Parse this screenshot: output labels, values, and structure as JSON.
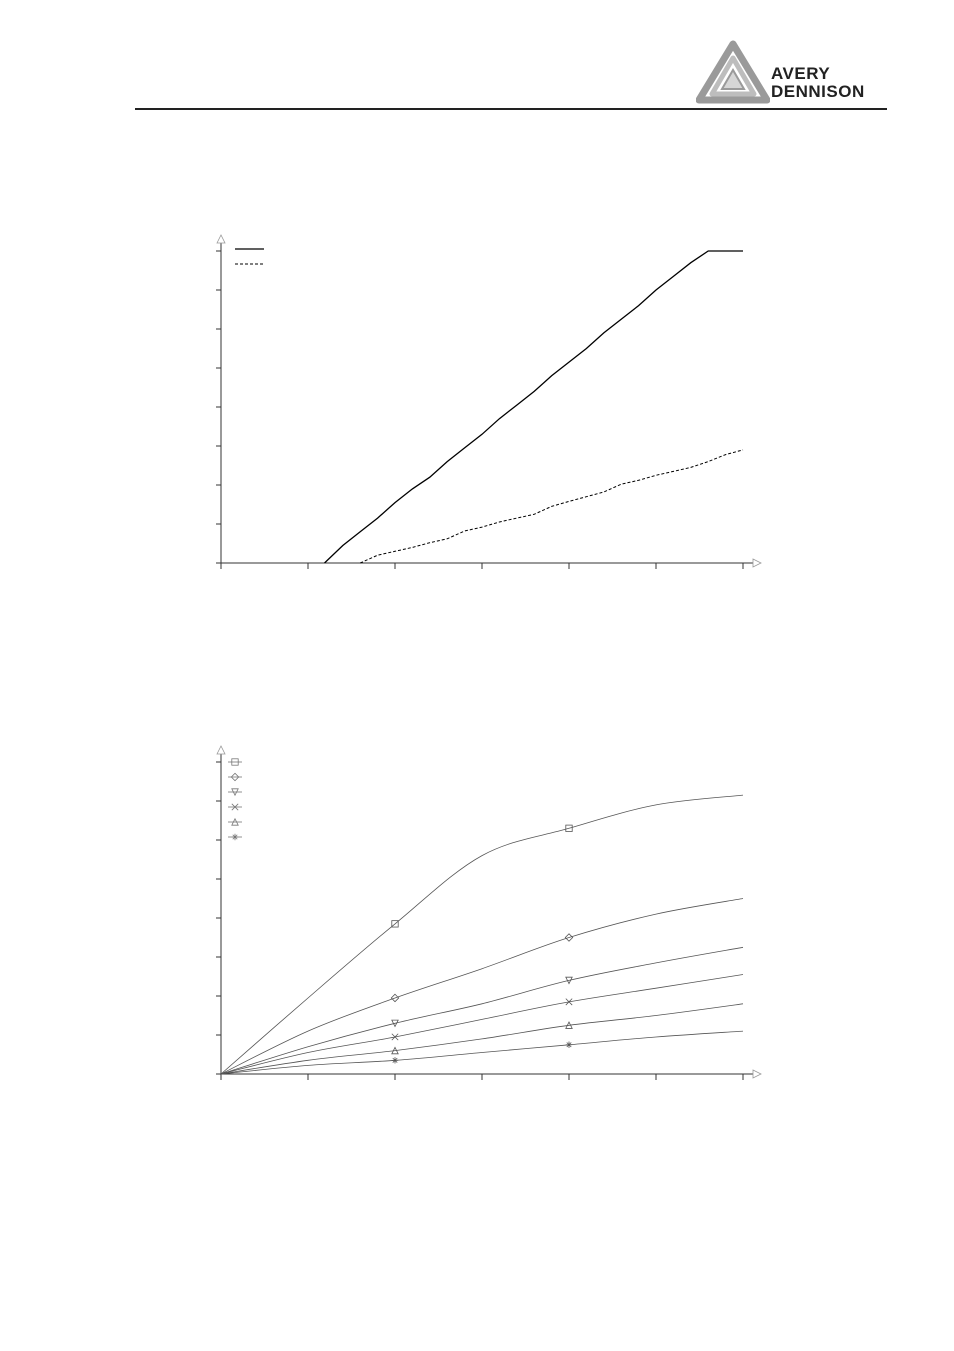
{
  "header": {
    "logo_line1": "AVERY",
    "logo_line2": "DENNISON"
  },
  "chart_data": [
    {
      "type": "line",
      "title": "",
      "xlabel": "",
      "ylabel": "",
      "xlim": [
        0,
        6
      ],
      "ylim": [
        0,
        8
      ],
      "x_ticks": [
        0,
        1,
        2,
        3,
        4,
        5,
        6
      ],
      "y_ticks": [
        0,
        1,
        2,
        3,
        4,
        5,
        6,
        7,
        8
      ],
      "grid": false,
      "legend_position": "top-left",
      "x": [
        1.19,
        1.4,
        1.6,
        1.8,
        2.0,
        2.2,
        2.4,
        2.6,
        2.8,
        3.0,
        3.2,
        3.4,
        3.6,
        3.8,
        4.0,
        4.2,
        4.4,
        4.6,
        4.8,
        5.0,
        5.2,
        5.4,
        5.6,
        5.8,
        6.0
      ],
      "series": [
        {
          "style": "solid",
          "color": "#000000",
          "values": [
            0,
            0.45,
            0.8,
            1.15,
            1.55,
            1.9,
            2.2,
            2.6,
            2.95,
            3.3,
            3.7,
            4.05,
            4.4,
            4.8,
            5.15,
            5.5,
            5.9,
            6.25,
            6.6,
            7.0,
            7.35,
            7.7,
            8.1,
            8.45,
            8.8
          ]
        },
        {
          "style": "dashed",
          "color": "#000000",
          "values": [
            null,
            null,
            0.0,
            0.2,
            0.3,
            0.4,
            0.52,
            0.62,
            0.82,
            0.92,
            1.05,
            1.15,
            1.25,
            1.45,
            1.58,
            1.7,
            1.82,
            2.02,
            2.12,
            2.25,
            2.35,
            2.45,
            2.6,
            2.78,
            2.9
          ]
        }
      ]
    },
    {
      "type": "line",
      "title": "",
      "xlabel": "",
      "ylabel": "",
      "xlim": [
        0,
        6
      ],
      "ylim": [
        0,
        8
      ],
      "x_ticks": [
        0,
        1,
        2,
        3,
        4,
        5,
        6
      ],
      "y_ticks": [
        0,
        1,
        2,
        3,
        4,
        5,
        6,
        7,
        8
      ],
      "grid": false,
      "legend_position": "top-left",
      "x": [
        0,
        1,
        2,
        3,
        4,
        5,
        6
      ],
      "marker_x": [
        2,
        4
      ],
      "series": [
        {
          "marker": "square",
          "values": [
            0,
            1.95,
            3.85,
            5.6,
            6.3,
            6.9,
            7.15
          ]
        },
        {
          "marker": "diamond",
          "values": [
            0,
            1.1,
            1.95,
            2.7,
            3.5,
            4.1,
            4.5
          ]
        },
        {
          "marker": "triangle-down",
          "values": [
            0,
            0.7,
            1.3,
            1.8,
            2.4,
            2.85,
            3.25
          ]
        },
        {
          "marker": "x",
          "values": [
            0,
            0.55,
            0.95,
            1.4,
            1.85,
            2.2,
            2.55
          ]
        },
        {
          "marker": "triangle-up",
          "values": [
            0,
            0.35,
            0.6,
            0.9,
            1.25,
            1.5,
            1.8
          ]
        },
        {
          "marker": "star",
          "values": [
            0,
            0.22,
            0.35,
            0.55,
            0.75,
            0.95,
            1.1
          ]
        }
      ]
    }
  ]
}
